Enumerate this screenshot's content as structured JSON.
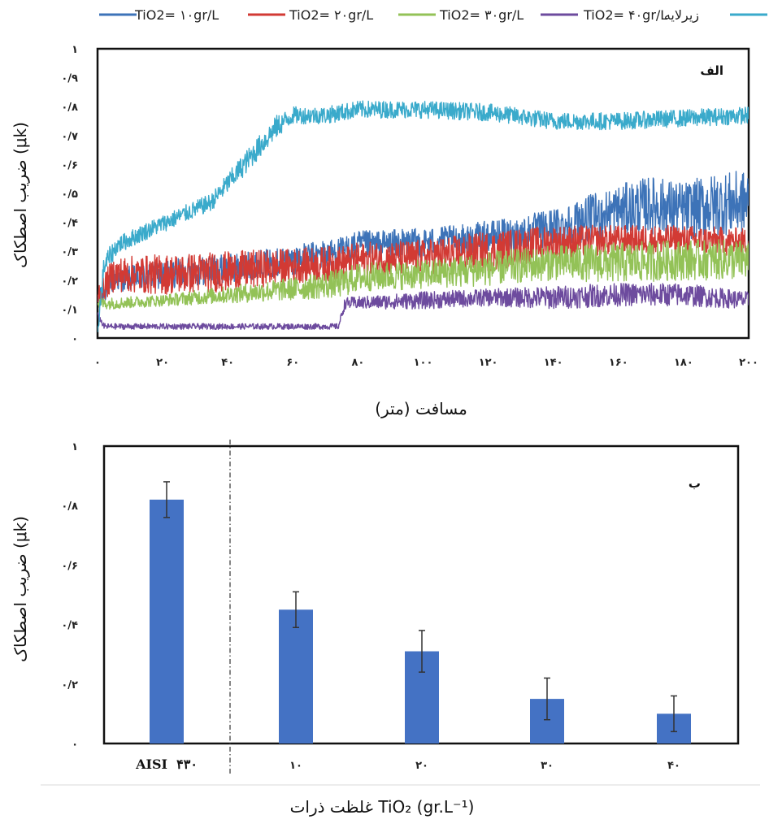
{
  "colors": {
    "blue": "#3d73b8",
    "red": "#d23a34",
    "green": "#93c257",
    "purple": "#6d4b9e",
    "cyan": "#3aaacb",
    "bar": "#4472c4"
  },
  "chart_data": [
    {
      "type": "line",
      "panel_label": "الف",
      "xlabel": "مسافت (متر)",
      "ylabel": "ضریب اصطکاک (μk)",
      "xlim": [
        0,
        200
      ],
      "ylim": [
        0,
        1
      ],
      "x_tick_labels": [
        "۰",
        "۲۰",
        "۴۰",
        "۶۰",
        "۸۰",
        "۱۰۰",
        "۱۲۰",
        "۱۴۰",
        "۱۶۰",
        "۱۸۰",
        "۲۰۰"
      ],
      "y_tick_labels": [
        "۰",
        "۰/۱",
        "۰/۲",
        "۰/۳",
        "۰/۴",
        "۰/۵",
        "۰/۶",
        "۰/۷",
        "۰/۸",
        "۰/۹",
        "۱"
      ],
      "legend_position": "top",
      "series": [
        {
          "name": "TiO2= ۱۰gr/L",
          "color_key": "blue",
          "x": [
            0,
            5,
            20,
            40,
            60,
            75,
            80,
            100,
            110,
            130,
            140,
            150,
            160,
            170,
            180,
            190,
            200
          ],
          "y": [
            0.13,
            0.2,
            0.22,
            0.24,
            0.27,
            0.3,
            0.32,
            0.33,
            0.34,
            0.36,
            0.38,
            0.41,
            0.44,
            0.46,
            0.44,
            0.46,
            0.47
          ],
          "noise": [
            0.03,
            0.04,
            0.05,
            0.05,
            0.05,
            0.05,
            0.05,
            0.05,
            0.05,
            0.06,
            0.07,
            0.08,
            0.09,
            0.1,
            0.1,
            0.11,
            0.11
          ]
        },
        {
          "name": "TiO2= ۲۰gr/L",
          "color_key": "red",
          "x": [
            0,
            5,
            20,
            40,
            60,
            75,
            80,
            100,
            120,
            140,
            160,
            180,
            200
          ],
          "y": [
            0.15,
            0.22,
            0.22,
            0.23,
            0.25,
            0.26,
            0.27,
            0.28,
            0.3,
            0.33,
            0.34,
            0.34,
            0.33
          ],
          "noise": [
            0.04,
            0.06,
            0.07,
            0.07,
            0.06,
            0.06,
            0.06,
            0.06,
            0.07,
            0.06,
            0.05,
            0.05,
            0.05
          ]
        },
        {
          "name": "TiO2= ۳۰gr/L",
          "color_key": "green",
          "x": [
            0,
            5,
            20,
            40,
            60,
            75,
            80,
            100,
            120,
            140,
            160,
            180,
            200
          ],
          "y": [
            0.12,
            0.12,
            0.13,
            0.15,
            0.17,
            0.19,
            0.21,
            0.22,
            0.24,
            0.26,
            0.26,
            0.27,
            0.27
          ],
          "noise": [
            0.02,
            0.02,
            0.02,
            0.03,
            0.04,
            0.05,
            0.05,
            0.05,
            0.06,
            0.06,
            0.07,
            0.07,
            0.07
          ]
        },
        {
          "name": "TiO2= ۴۰gr/L",
          "color_key": "purple",
          "x": [
            0,
            2,
            60,
            74,
            76,
            100,
            120,
            140,
            160,
            180,
            200
          ],
          "y": [
            0.08,
            0.04,
            0.04,
            0.04,
            0.12,
            0.13,
            0.14,
            0.14,
            0.15,
            0.15,
            0.13
          ],
          "noise": [
            0.01,
            0.01,
            0.01,
            0.01,
            0.02,
            0.03,
            0.03,
            0.04,
            0.04,
            0.04,
            0.03
          ]
        },
        {
          "name": "زیرلایه",
          "color_key": "cyan",
          "x": [
            0,
            2,
            6,
            15,
            25,
            35,
            45,
            55,
            60,
            70,
            80,
            100,
            120,
            140,
            160,
            180,
            200
          ],
          "y": [
            0.02,
            0.25,
            0.32,
            0.37,
            0.42,
            0.47,
            0.6,
            0.73,
            0.77,
            0.77,
            0.79,
            0.79,
            0.78,
            0.75,
            0.75,
            0.76,
            0.77
          ],
          "noise": [
            0.02,
            0.04,
            0.03,
            0.03,
            0.03,
            0.03,
            0.04,
            0.04,
            0.03,
            0.03,
            0.03,
            0.03,
            0.03,
            0.03,
            0.03,
            0.03,
            0.03
          ]
        }
      ]
    },
    {
      "type": "bar",
      "panel_label": "ب",
      "xlabel": "غلظت ذرات TiO₂ (gr.L⁻¹)",
      "ylabel": "ضریب اصطکاک (μk)",
      "ylim": [
        0,
        1
      ],
      "y_tick_labels": [
        "۰",
        "۰/۲",
        "۰/۴",
        "۰/۶",
        "۰/۸",
        "۱"
      ],
      "categories": [
        "AISI  ۴۳۰",
        "۱۰",
        "۲۰",
        "۳۰",
        "۴۰"
      ],
      "values": [
        0.82,
        0.45,
        0.31,
        0.15,
        0.1
      ],
      "errors": [
        0.06,
        0.06,
        0.07,
        0.07,
        0.06
      ],
      "separator": "dash-dot line after first category"
    }
  ]
}
